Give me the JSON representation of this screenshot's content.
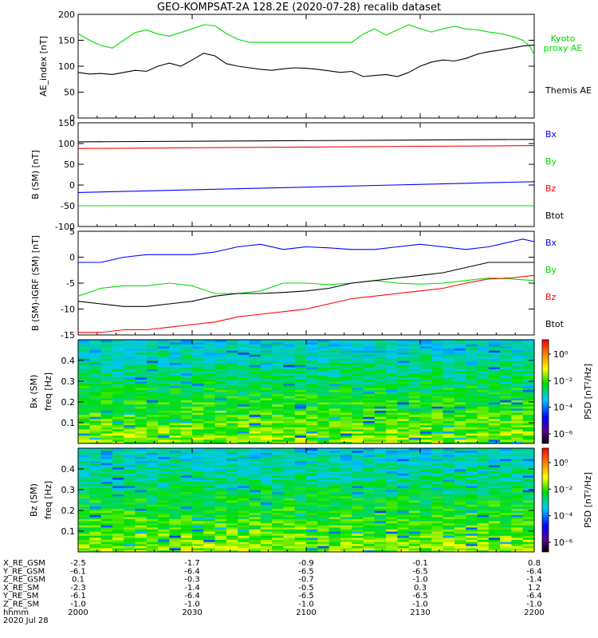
{
  "title": "GEO-KOMPSAT-2A 128.2E (2020-07-28) recalib dataset",
  "colors": {
    "black": "#000000",
    "blue": "#0000ff",
    "green": "#00dd00",
    "red": "#ff0000"
  },
  "chart_data": [
    {
      "panel": "ae",
      "type": "line",
      "ylabel": "AE_index [nT]",
      "ylim": [
        0,
        200
      ],
      "yticks": [
        0,
        50,
        100,
        150,
        200
      ],
      "xlim": [
        0,
        120
      ],
      "series": [
        {
          "name": "Kyoto proxy AE",
          "color": "#00dd00",
          "label_lines": [
            "Kyoto",
            "proxy AE"
          ],
          "x": [
            0,
            3,
            6,
            9,
            12,
            15,
            18,
            21,
            24,
            27,
            30,
            33,
            36,
            39,
            42,
            45,
            48,
            51,
            54,
            57,
            60,
            63,
            66,
            69,
            72,
            75,
            78,
            81,
            84,
            87,
            90,
            93,
            96,
            99,
            102,
            105,
            108,
            111,
            114,
            117,
            119,
            120
          ],
          "y": [
            163,
            150,
            140,
            135,
            150,
            165,
            170,
            162,
            158,
            165,
            172,
            180,
            178,
            163,
            152,
            146,
            146,
            146,
            146,
            146,
            146,
            146,
            146,
            146,
            146,
            162,
            172,
            160,
            170,
            180,
            172,
            166,
            172,
            177,
            172,
            170,
            166,
            163,
            158,
            150,
            137,
            122
          ]
        },
        {
          "name": "Themis AE",
          "color": "#000000",
          "label_lines": [
            "Themis AE"
          ],
          "x": [
            0,
            3,
            6,
            9,
            12,
            15,
            18,
            21,
            24,
            27,
            30,
            33,
            36,
            39,
            42,
            45,
            48,
            51,
            54,
            57,
            60,
            63,
            66,
            69,
            72,
            75,
            78,
            81,
            84,
            87,
            90,
            93,
            96,
            99,
            102,
            105,
            108,
            111,
            114,
            117,
            120
          ],
          "y": [
            88,
            85,
            86,
            84,
            88,
            92,
            90,
            100,
            106,
            100,
            112,
            125,
            120,
            105,
            100,
            97,
            94,
            92,
            95,
            97,
            96,
            94,
            91,
            88,
            90,
            80,
            82,
            84,
            80,
            88,
            100,
            108,
            112,
            110,
            115,
            123,
            128,
            131,
            135,
            139,
            141
          ]
        }
      ]
    },
    {
      "panel": "bsm",
      "type": "line",
      "ylabel": "B (SM) [nT]",
      "ylim": [
        -100,
        150
      ],
      "yticks": [
        -100,
        -50,
        0,
        50,
        100,
        150
      ],
      "xlim": [
        0,
        120
      ],
      "series": [
        {
          "name": "Bx",
          "color": "#0000ff",
          "x": [
            0,
            120
          ],
          "y": [
            -18,
            8
          ]
        },
        {
          "name": "By",
          "color": "#00dd00",
          "x": [
            0,
            120
          ],
          "y": [
            -50,
            -50
          ]
        },
        {
          "name": "Bz",
          "color": "#ff0000",
          "x": [
            0,
            120
          ],
          "y": [
            88,
            95
          ]
        },
        {
          "name": "Btot",
          "color": "#000000",
          "x": [
            0,
            120
          ],
          "y": [
            104,
            110
          ]
        }
      ]
    },
    {
      "panel": "bdiff",
      "type": "line",
      "ylabel": "B (SM)-IGRF (SM) [nT]",
      "ylim": [
        -15,
        5
      ],
      "yticks": [
        -15,
        -10,
        -5,
        0,
        5
      ],
      "xlim": [
        0,
        120
      ],
      "series": [
        {
          "name": "Bx",
          "color": "#0000ff",
          "x": [
            0,
            6,
            12,
            18,
            24,
            30,
            36,
            42,
            48,
            54,
            60,
            66,
            72,
            78,
            84,
            90,
            96,
            102,
            108,
            114,
            117,
            120
          ],
          "y": [
            -1,
            -1,
            0,
            0.5,
            0.5,
            0.5,
            1,
            2,
            2.5,
            1.5,
            2,
            1.8,
            1.5,
            1.5,
            2,
            2.5,
            2,
            1.5,
            2,
            3,
            3.5,
            3
          ]
        },
        {
          "name": "By",
          "color": "#00dd00",
          "x": [
            0,
            6,
            12,
            18,
            24,
            30,
            36,
            42,
            48,
            54,
            60,
            66,
            72,
            78,
            84,
            90,
            96,
            102,
            108,
            114,
            120
          ],
          "y": [
            -7.5,
            -6,
            -5.5,
            -5.5,
            -5,
            -5.5,
            -7,
            -7,
            -6.5,
            -5,
            -5,
            -5.3,
            -5,
            -4.5,
            -5,
            -5.2,
            -5,
            -4.5,
            -4,
            -4.2,
            -4.5
          ]
        },
        {
          "name": "Bz",
          "color": "#ff0000",
          "x": [
            0,
            6,
            12,
            18,
            24,
            30,
            36,
            42,
            48,
            54,
            60,
            66,
            72,
            78,
            84,
            90,
            96,
            102,
            108,
            114,
            120
          ],
          "y": [
            -14.5,
            -14.5,
            -14,
            -14,
            -13.5,
            -13,
            -12.5,
            -11.5,
            -11,
            -10.5,
            -10,
            -9,
            -8,
            -7.5,
            -7,
            -6.5,
            -6,
            -5,
            -4.2,
            -4,
            -3.5
          ]
        },
        {
          "name": "Btot",
          "color": "#000000",
          "x": [
            0,
            6,
            12,
            18,
            24,
            30,
            36,
            42,
            48,
            54,
            60,
            66,
            72,
            78,
            84,
            90,
            96,
            102,
            108,
            114,
            120
          ],
          "y": [
            -8.5,
            -9,
            -9.5,
            -9.5,
            -9,
            -8.5,
            -7.5,
            -7,
            -7,
            -6.8,
            -6.5,
            -6,
            -5,
            -4.5,
            -4,
            -3.5,
            -3,
            -2,
            -1,
            -1,
            -1
          ]
        }
      ]
    },
    {
      "panel": "bx_spec",
      "type": "heatmap",
      "ylabel_lines": [
        "Bx (SM)",
        "freq [Hz]"
      ],
      "ylim": [
        0,
        0.5
      ],
      "yticks": [
        0.1,
        0.2,
        0.3,
        0.4
      ],
      "colorbar": {
        "label": "PSD [nT²/Hz]",
        "ticks": [
          "10⁰",
          "10⁻²",
          "10⁻⁴",
          "10⁻⁶"
        ]
      }
    },
    {
      "panel": "bz_spec",
      "type": "heatmap",
      "ylabel_lines": [
        "Bz (SM)",
        "freq [Hz]"
      ],
      "ylim": [
        0,
        0.5
      ],
      "yticks": [
        0.1,
        0.2,
        0.3,
        0.4
      ],
      "colorbar": {
        "label": "PSD [nT²/Hz]",
        "ticks": [
          "10⁰",
          "10⁻²",
          "10⁻⁴",
          "10⁻⁶"
        ]
      }
    }
  ],
  "ephemeris": {
    "rows": [
      {
        "label": "X_RE_GSM",
        "values": [
          "-2.5",
          "-1.7",
          "-0.9",
          "-0.1",
          "0.8"
        ]
      },
      {
        "label": "Y_RE_GSM",
        "values": [
          "-6.1",
          "-6.4",
          "-6.5",
          "-6.5",
          "-6.4"
        ]
      },
      {
        "label": "Z_RE_GSM",
        "values": [
          "0.1",
          "-0.3",
          "-0.7",
          "-1.0",
          "-1.4"
        ]
      },
      {
        "label": "X_RE_SM",
        "values": [
          "-2.3",
          "-1.4",
          "-0.5",
          "0.3",
          "1.2"
        ]
      },
      {
        "label": "Y_RE_SM",
        "values": [
          "-6.1",
          "-6.4",
          "-6.5",
          "-6.5",
          "-6.4"
        ]
      },
      {
        "label": "Z_RE_SM",
        "values": [
          "-1.0",
          "-1.0",
          "-1.0",
          "-1.0",
          "-1.0"
        ]
      },
      {
        "label": "hhmm",
        "values": [
          "2000",
          "2030",
          "2100",
          "2130",
          "2200"
        ]
      }
    ],
    "date": "2020 Jul 28"
  }
}
